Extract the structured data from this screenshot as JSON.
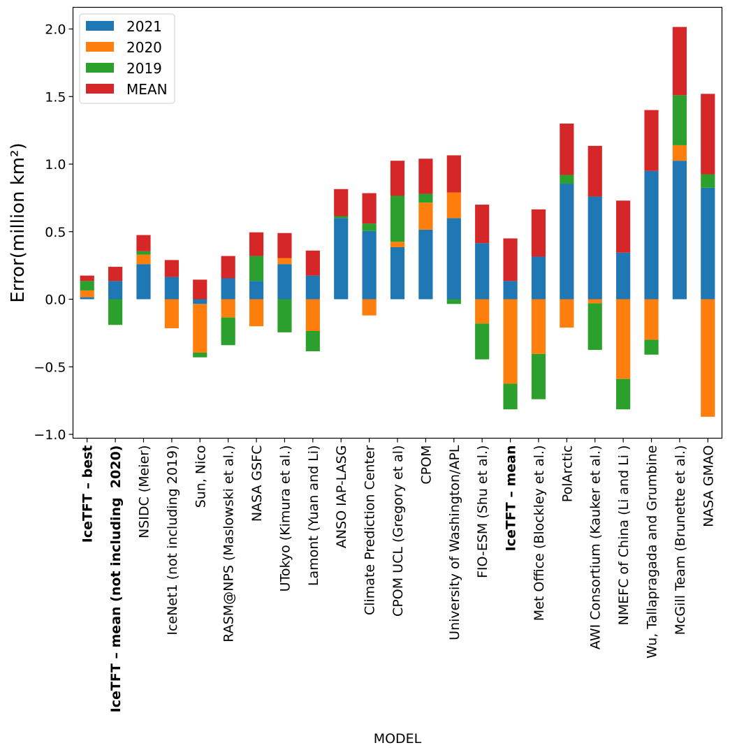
{
  "chart_data": {
    "type": "bar",
    "stacked": true,
    "title": "",
    "xlabel": "MODEL",
    "ylabel": "Error(million km²)",
    "ylim": [
      -1.02,
      2.16
    ],
    "yticks": [
      -1.0,
      -0.5,
      0.0,
      0.5,
      1.0,
      1.5,
      2.0
    ],
    "ytick_labels": [
      "−1.0",
      "−0.5",
      "0.0",
      "0.5",
      "1.0",
      "1.5",
      "2.0"
    ],
    "grid": false,
    "legend_position": "top-left",
    "categories": [
      "IceTFT – best",
      "IceTFT – mean (not including  2020)",
      "NSIDC (Meier)",
      "IceNet1 (not including 2019)",
      "Sun, Nico",
      "RASM@NPS (Maslowski et al.)",
      "NASA GSFC",
      "UTokyo (Kimura et al.)",
      "Lamont (Yuan and Li)",
      "ANSO IAP-LASG",
      "Climate Prediction Center",
      "CPOM UCL (Gregory et al)",
      "CPOM",
      "University of Washington/APL",
      "FIO-ESM (Shu et al.)",
      "IceTFT – mean",
      "Met Office (Blockley et al.)",
      "PolArctic",
      "AWI Consortium (Kauker et al.)",
      "NMEFC of China (Li and Li )",
      "Wu, Tallapragada and Grumbine",
      "McGill Team (Brunette et al.)",
      "NASA GMAO"
    ],
    "bold_categories": [
      0,
      1,
      15
    ],
    "series": [
      {
        "name": "2021",
        "color": "#1f77b4",
        "values": [
          0.015,
          0.135,
          0.26,
          0.165,
          -0.035,
          0.155,
          0.135,
          0.26,
          0.175,
          0.6,
          0.505,
          0.385,
          0.515,
          0.6,
          0.415,
          0.135,
          0.315,
          0.855,
          0.76,
          0.345,
          0.95,
          1.025,
          0.825
        ]
      },
      {
        "name": "2020",
        "color": "#ff7f0e",
        "values": [
          0.05,
          0.0,
          0.07,
          -0.215,
          -0.36,
          -0.135,
          -0.2,
          0.045,
          -0.235,
          0.0,
          -0.12,
          0.04,
          0.2,
          0.19,
          -0.18,
          -0.625,
          -0.405,
          -0.21,
          -0.03,
          -0.59,
          -0.3,
          0.115,
          -0.87
        ]
      },
      {
        "name": "2019",
        "color": "#2ca02c",
        "values": [
          0.07,
          -0.19,
          0.025,
          0.0,
          -0.035,
          -0.205,
          0.185,
          -0.245,
          -0.15,
          0.015,
          0.055,
          0.34,
          0.065,
          -0.035,
          -0.265,
          -0.19,
          -0.335,
          0.065,
          -0.345,
          -0.225,
          -0.11,
          0.37,
          0.1
        ]
      },
      {
        "name": "MEAN",
        "color": "#d62728",
        "values": [
          0.04,
          0.105,
          0.12,
          0.125,
          0.145,
          0.165,
          0.175,
          0.185,
          0.185,
          0.2,
          0.225,
          0.26,
          0.26,
          0.275,
          0.285,
          0.315,
          0.35,
          0.38,
          0.375,
          0.385,
          0.45,
          0.505,
          0.595
        ]
      }
    ]
  }
}
